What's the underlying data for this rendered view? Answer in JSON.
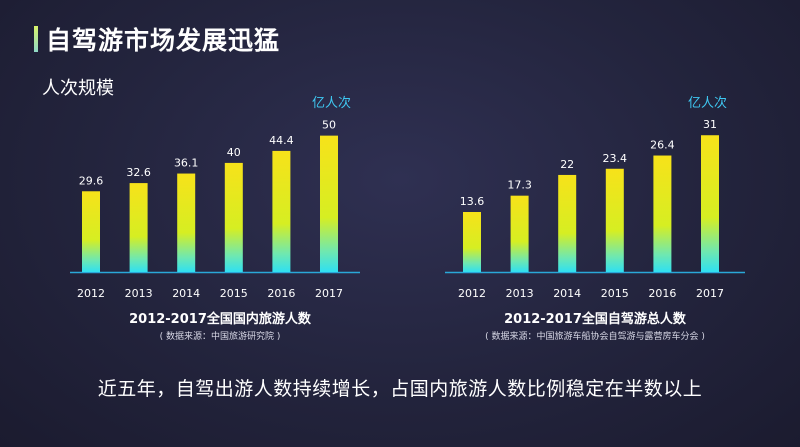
{
  "header": {
    "title": "自驾游市场发展迅猛",
    "subtitle": "人次规模"
  },
  "chart_data": [
    {
      "type": "bar",
      "title": "2012-2017全国国内旅游人数",
      "source": "( 数据来源：中国旅游研究院 )",
      "unit": "亿人次",
      "categories": [
        "2012",
        "2013",
        "2014",
        "2015",
        "2016",
        "2017"
      ],
      "values": [
        29.6,
        32.6,
        36.1,
        40,
        44.4,
        50
      ],
      "value_labels": [
        "29.6",
        "32.6",
        "36.1",
        "40",
        "44.4",
        "50"
      ],
      "ylim": [
        0,
        55
      ]
    },
    {
      "type": "bar",
      "title": "2012-2017全国自驾游总人数",
      "source": "( 数据来源：中国旅游车船协会自驾游与露营房车分会 )",
      "unit": "亿人次",
      "categories": [
        "2012",
        "2013",
        "2014",
        "2015",
        "2016",
        "2017"
      ],
      "values": [
        13.6,
        17.3,
        22,
        23.4,
        26.4,
        31
      ],
      "value_labels": [
        "13.6",
        "17.3",
        "22",
        "23.4",
        "26.4",
        "31"
      ],
      "ylim": [
        0,
        34
      ]
    }
  ],
  "footer": {
    "conclusion": "近五年，自驾出游人数持续增长，占国内旅游人数比例稳定在半数以上"
  },
  "colors": {
    "bar_top": "#f7e21a",
    "bar_mid": "#c9f02a",
    "bar_bottom": "#2fe0f2",
    "baseline": "#2aa8d8",
    "unit_text": "#3fc8f2"
  }
}
